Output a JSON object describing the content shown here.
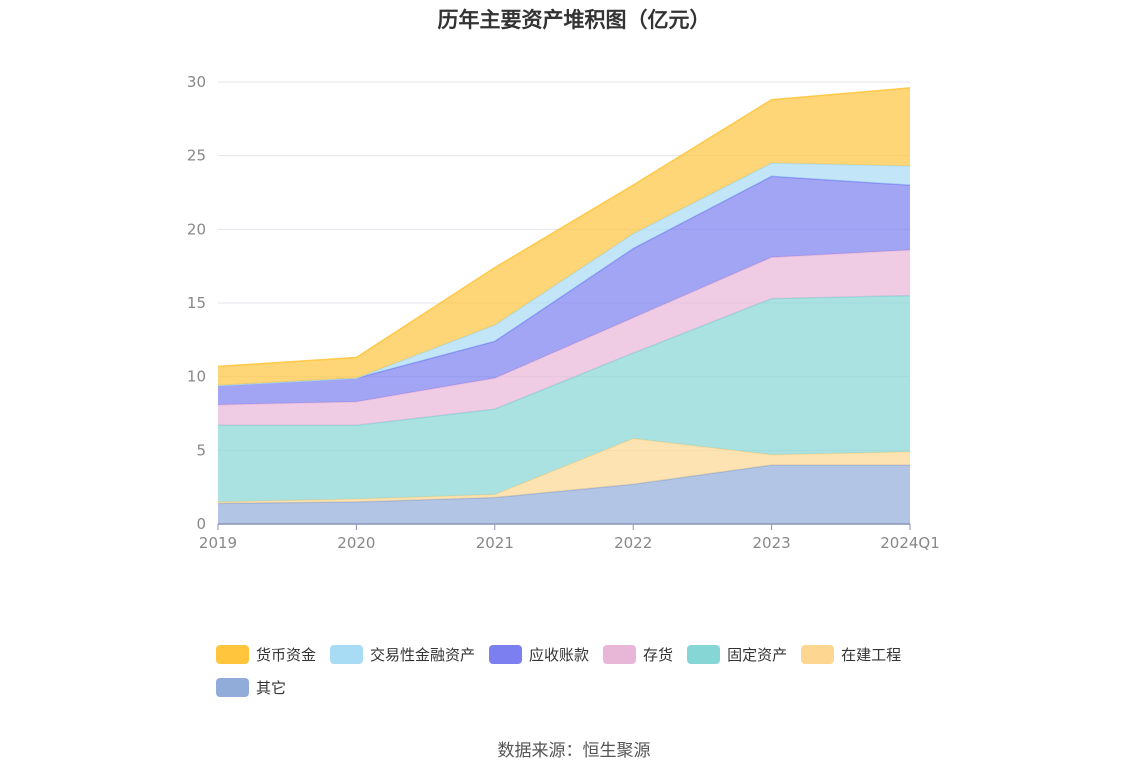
{
  "page": {
    "source_text": "数据来源：恒生聚源"
  },
  "chart_data": {
    "type": "area",
    "stacked": true,
    "title": "历年主要资产堆积图（亿元）",
    "xlabel": "",
    "ylabel": "",
    "categories": [
      "2019",
      "2020",
      "2021",
      "2022",
      "2023",
      "2024Q1"
    ],
    "ylim": [
      0,
      30
    ],
    "yticks": [
      0,
      5,
      10,
      15,
      20,
      25,
      30
    ],
    "grid": true,
    "legend_position": "bottom",
    "series": [
      {
        "name": "其它",
        "color": "#91acd9",
        "values": [
          1.4,
          1.5,
          1.8,
          2.7,
          4.0,
          4.0
        ]
      },
      {
        "name": "在建工程",
        "color": "#fdd792",
        "values": [
          0.1,
          0.2,
          0.2,
          3.1,
          0.7,
          0.9
        ]
      },
      {
        "name": "固定资产",
        "color": "#86d6d6",
        "values": [
          5.2,
          5.0,
          5.8,
          5.8,
          10.6,
          10.6
        ]
      },
      {
        "name": "存货",
        "color": "#e8b7d8",
        "values": [
          1.4,
          1.6,
          2.1,
          2.4,
          2.8,
          3.1
        ]
      },
      {
        "name": "应收账款",
        "color": "#7b7ff0",
        "values": [
          1.3,
          1.6,
          2.5,
          4.7,
          5.5,
          4.4
        ]
      },
      {
        "name": "交易性金融资产",
        "color": "#a8dcf5",
        "values": [
          0.0,
          0.0,
          1.1,
          1.0,
          0.9,
          1.3
        ]
      },
      {
        "name": "货币资金",
        "color": "#ffc53d",
        "values": [
          1.3,
          1.4,
          3.9,
          3.3,
          4.3,
          5.3
        ]
      }
    ],
    "legend_order": [
      "货币资金",
      "交易性金融资产",
      "应收账款",
      "存货",
      "固定资产",
      "在建工程",
      "其它"
    ]
  }
}
